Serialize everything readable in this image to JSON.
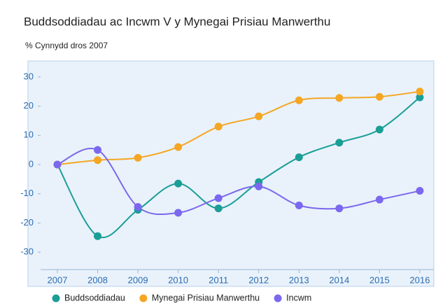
{
  "chart_data": {
    "type": "line",
    "title": "Buddsoddiadau ac Incwm V y Mynegai Prisiau Manwerthu",
    "y_label": "% Cynnydd dros 2007",
    "categories": [
      "2007",
      "2008",
      "2009",
      "2010",
      "2011",
      "2012",
      "2013",
      "2014",
      "2015",
      "2016"
    ],
    "series": [
      {
        "name": "Buddsoddiadau",
        "color": "#1a9e96",
        "values": [
          0,
          -24.5,
          -15.5,
          -6.5,
          -15,
          -6,
          2.5,
          7.5,
          12,
          23
        ]
      },
      {
        "name": "Mynegai Prisiau Manwerthu",
        "color": "#f5a623",
        "values": [
          0,
          1.5,
          2.3,
          6,
          13,
          16.5,
          22,
          22.8,
          23.2,
          25
        ]
      },
      {
        "name": "Incwm",
        "color": "#7b68ee",
        "values": [
          0,
          5,
          -14.5,
          -16.5,
          -11.5,
          -7.5,
          -14,
          -15,
          -12,
          -9
        ]
      }
    ],
    "ylim": [
      -35,
      35
    ],
    "yticks": [
      -30,
      -20,
      -10,
      0,
      10,
      20,
      30
    ],
    "grid": false
  }
}
